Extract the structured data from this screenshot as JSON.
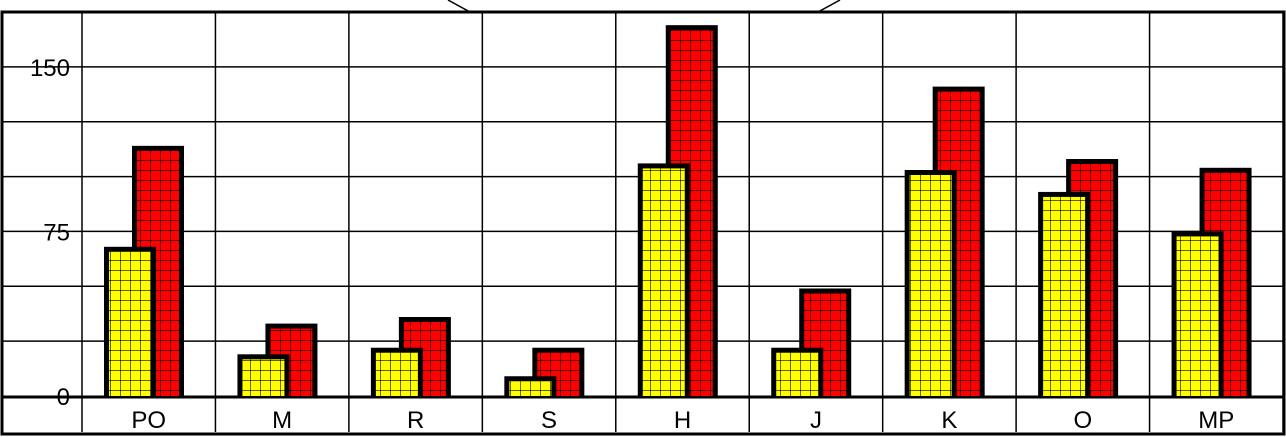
{
  "chart_data": {
    "type": "bar",
    "title": "",
    "xlabel": "",
    "ylabel": "",
    "categories": [
      "PO",
      "M",
      "R",
      "S",
      "H",
      "J",
      "K",
      "O",
      "MP"
    ],
    "series": [
      {
        "color": "#ffff00",
        "values": [
          68,
          19,
          22,
          9,
          106,
          22,
          103,
          93,
          75
        ]
      },
      {
        "color": "#ff0000",
        "values": [
          114,
          33,
          36,
          22,
          169,
          49,
          141,
          108,
          104
        ]
      }
    ],
    "yticks": [
      "0",
      "75",
      "150"
    ],
    "ylim": [
      0,
      175
    ],
    "grid": true,
    "frame_color": "#000000",
    "grid_color": "#000000",
    "cell_pattern": "grid"
  }
}
